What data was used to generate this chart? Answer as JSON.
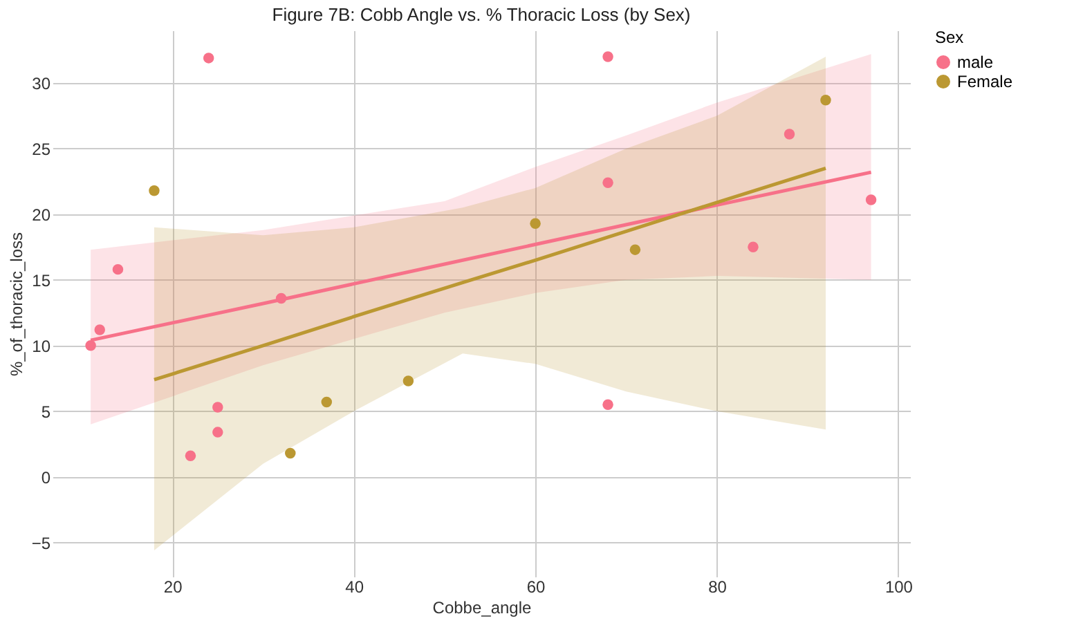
{
  "chart_data": {
    "type": "scatter",
    "title": "Figure 7B: Cobb Angle vs. % Thoracic Loss (by Sex)",
    "xlabel": "Cobbe_angle",
    "ylabel": "%_of_thoracic_loss",
    "legend_title": "Sex",
    "legend": "right",
    "grid": true,
    "marker": "circle",
    "xlim": [
      6.8,
      101.3
    ],
    "xticks": [
      20,
      40,
      60,
      80,
      100
    ],
    "ylim": [
      -7.6,
      34
    ],
    "yticks": [
      -5,
      0,
      5,
      10,
      15,
      20,
      25,
      30
    ],
    "series": [
      {
        "name": "male",
        "color": "#f77189",
        "x": [
          11,
          12,
          14,
          22,
          24,
          25,
          25,
          32,
          68,
          68,
          68,
          84,
          88,
          97
        ],
        "values": [
          10,
          11.2,
          15.8,
          1.6,
          31.9,
          5.3,
          3.4,
          13.6,
          32,
          22.4,
          5.5,
          17.5,
          26.1,
          21.1
        ]
      },
      {
        "name": "Female",
        "color": "#bb9832",
        "x": [
          18,
          33,
          37,
          46,
          60,
          71,
          92
        ],
        "values": [
          21.8,
          1.8,
          5.7,
          7.3,
          19.3,
          17.3,
          28.7
        ]
      },
      {
        "type": "line",
        "marker": "none",
        "line_style": "solid",
        "color": "#f77189",
        "x": [
          11,
          30,
          50,
          60,
          70,
          80,
          97
        ],
        "values": [
          10.4,
          13.2,
          16.2,
          17.7,
          19.2,
          20.7,
          23.2
        ],
        "lower": [
          4.0,
          8.5,
          12.5,
          14.0,
          15.0,
          15.3,
          15.0
        ],
        "upper": [
          17.3,
          18.8,
          21.0,
          23.6,
          26.0,
          28.5,
          32.2
        ]
      },
      {
        "type": "line",
        "marker": "none",
        "line_style": "solid",
        "color": "#bb9832",
        "x": [
          18,
          30,
          40,
          52,
          60,
          70,
          80,
          92
        ],
        "values": [
          7.4,
          10.0,
          12.2,
          14.8,
          16.5,
          18.7,
          20.9,
          23.5
        ],
        "lower": [
          -5.6,
          1.0,
          5.0,
          9.4,
          8.6,
          6.5,
          5.0,
          3.6
        ],
        "upper": [
          19.0,
          18.4,
          19.0,
          20.5,
          22.0,
          25.0,
          27.5,
          32.0
        ]
      }
    ]
  }
}
